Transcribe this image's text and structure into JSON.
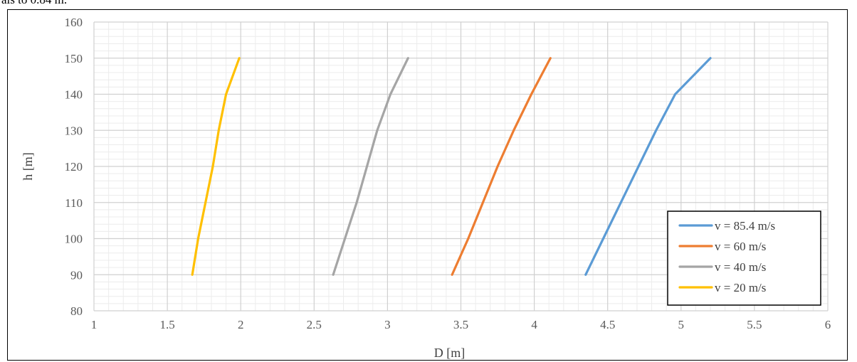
{
  "caption": "als to 0.84 m.",
  "chart_data": {
    "type": "line",
    "title": "",
    "xlabel": "D [m]",
    "ylabel": "h [m]",
    "xlim": [
      1,
      6
    ],
    "ylim": [
      80,
      160
    ],
    "x_ticks": [
      1,
      1.5,
      2,
      2.5,
      3,
      3.5,
      4,
      4.5,
      5,
      5.5,
      6
    ],
    "y_ticks": [
      80,
      90,
      100,
      110,
      120,
      130,
      140,
      150,
      160
    ],
    "grid": "major and minor",
    "legend_position": "bottom-right",
    "series": [
      {
        "name": "v = 85.4 m/s",
        "color": "#5b9bd5",
        "points": [
          [
            4.35,
            90
          ],
          [
            4.47,
            100
          ],
          [
            4.59,
            110
          ],
          [
            4.71,
            120
          ],
          [
            4.83,
            130
          ],
          [
            4.96,
            140
          ],
          [
            5.2,
            150
          ]
        ]
      },
      {
        "name": "v = 60 m/s",
        "color": "#ed7d31",
        "points": [
          [
            3.44,
            90
          ],
          [
            3.55,
            100
          ],
          [
            3.65,
            110
          ],
          [
            3.75,
            120
          ],
          [
            3.86,
            130
          ],
          [
            3.98,
            140
          ],
          [
            4.11,
            150
          ]
        ]
      },
      {
        "name": "v = 40 m/s",
        "color": "#a5a5a5",
        "points": [
          [
            2.63,
            90
          ],
          [
            2.71,
            100
          ],
          [
            2.79,
            110
          ],
          [
            2.86,
            120
          ],
          [
            2.93,
            130
          ],
          [
            3.02,
            140
          ],
          [
            3.14,
            150
          ]
        ]
      },
      {
        "name": "v = 20 m/s",
        "color": "#ffc000",
        "points": [
          [
            1.67,
            90
          ],
          [
            1.71,
            100
          ],
          [
            1.76,
            110
          ],
          [
            1.81,
            120
          ],
          [
            1.85,
            130
          ],
          [
            1.9,
            140
          ],
          [
            1.99,
            150
          ]
        ]
      }
    ]
  }
}
